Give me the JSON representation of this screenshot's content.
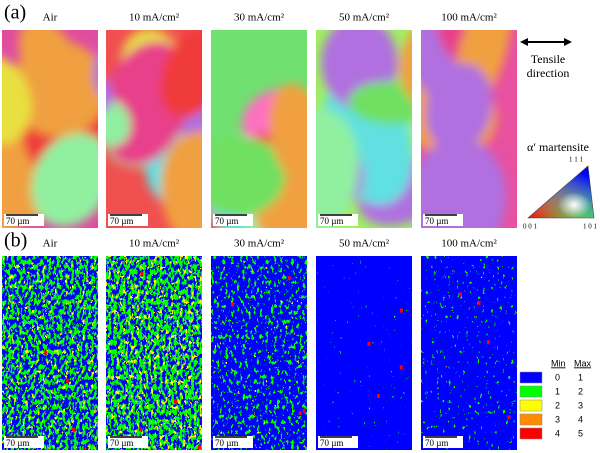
{
  "panels": [
    {
      "label": "(a)",
      "images": [
        {
          "title": "Air",
          "scale_bar": "70 µm"
        },
        {
          "title": "10 mA/cm²",
          "scale_bar": "70 µm"
        },
        {
          "title": "30 mA/cm²",
          "scale_bar": "70 µm"
        },
        {
          "title": "50 mA/cm²",
          "scale_bar": "70 µm"
        },
        {
          "title": "100 mA/cm²",
          "scale_bar": "70 µm"
        }
      ]
    },
    {
      "label": "(b)",
      "images": [
        {
          "title": "Air",
          "scale_bar": "70 µm"
        },
        {
          "title": "10 mA/cm²",
          "scale_bar": "70 µm"
        },
        {
          "title": "30 mA/cm²",
          "scale_bar": "70 µm"
        },
        {
          "title": "50 mA/cm²",
          "scale_bar": "70 µm"
        },
        {
          "title": "100 mA/cm²",
          "scale_bar": "70 µm"
        }
      ]
    }
  ],
  "tensile": [
    "Tensile",
    "direction"
  ],
  "ipf": {
    "title": "α′ martensite",
    "corners": [
      "0 0 1",
      "1 0 1",
      "1 1 1"
    ]
  },
  "kam_legend": {
    "header": [
      "Min",
      "Max"
    ],
    "rows": [
      {
        "color": "#0000ff",
        "min": 0,
        "max": 1
      },
      {
        "color": "#00ff00",
        "min": 1,
        "max": 2
      },
      {
        "color": "#ffff00",
        "min": 2,
        "max": 3
      },
      {
        "color": "#ff8c00",
        "min": 3,
        "max": 4
      },
      {
        "color": "#ff0000",
        "min": 4,
        "max": 5
      }
    ]
  }
}
